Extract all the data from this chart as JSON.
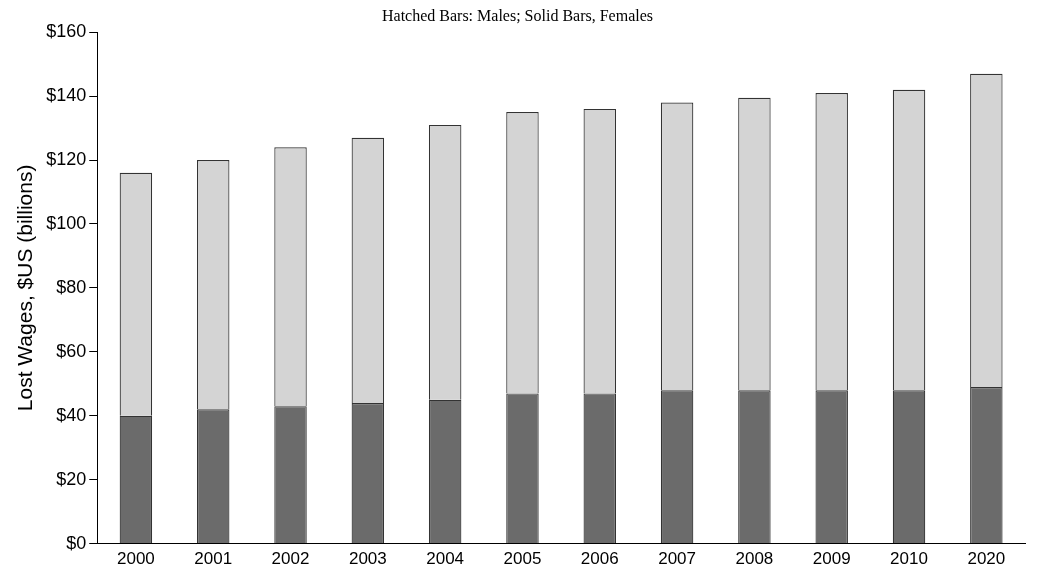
{
  "chart_data": {
    "type": "bar",
    "stacked": true,
    "title": "Hatched Bars: Males; Solid Bars, Females",
    "ylabel": "Lost Wages, $US (billions)",
    "categories": [
      "2000",
      "2001",
      "2002",
      "2003",
      "2004",
      "2005",
      "2006",
      "2007",
      "2008",
      "2009",
      "2010",
      "2020"
    ],
    "series": [
      {
        "color": "#6b6b6b",
        "values": [
          40,
          42,
          43,
          44,
          45,
          47,
          47,
          48,
          48,
          48,
          48,
          49
        ]
      },
      {
        "color": "#d4d4d4",
        "values": [
          76,
          78,
          81,
          83,
          86,
          88,
          89,
          90,
          91.5,
          93,
          94,
          98
        ]
      }
    ],
    "ylim": [
      0,
      160
    ],
    "yticks": [
      {
        "value": 0,
        "label": "$0"
      },
      {
        "value": 20,
        "label": "$20"
      },
      {
        "value": 40,
        "label": "$40"
      },
      {
        "value": 60,
        "label": "$60"
      },
      {
        "value": 80,
        "label": "$80"
      },
      {
        "value": 100,
        "label": "$100"
      },
      {
        "value": 120,
        "label": "$120"
      },
      {
        "value": 140,
        "label": "$140"
      },
      {
        "value": 160,
        "label": "$160"
      }
    ],
    "grid": false,
    "legend": false
  }
}
